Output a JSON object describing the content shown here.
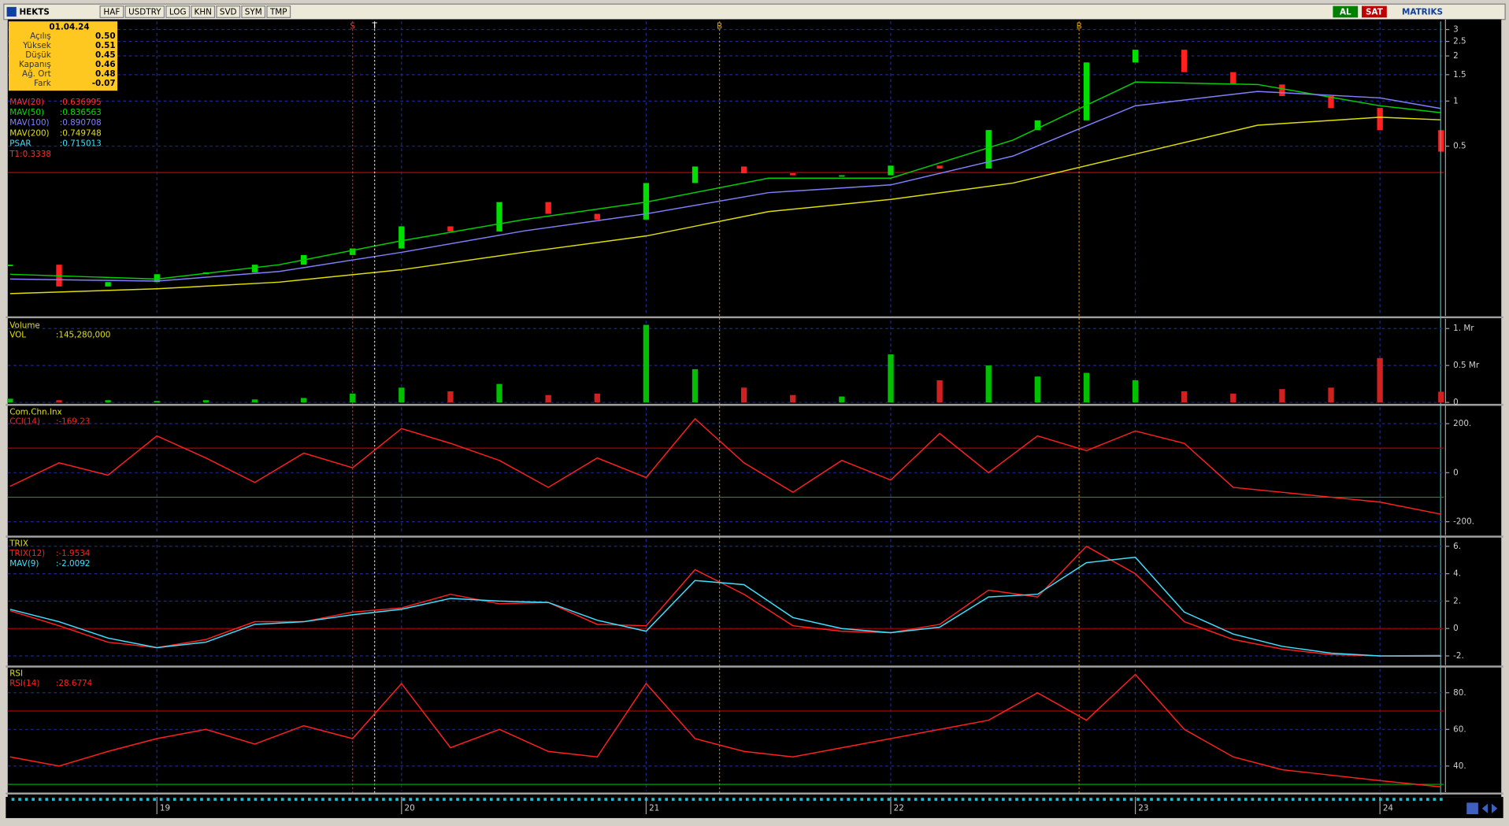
{
  "window": {
    "symbol": "HEKTS",
    "buttons": [
      "HAF",
      "USDTRY",
      "LOG",
      "KHN",
      "SVD",
      "SYM",
      "TMP"
    ],
    "right_buttons": [
      "AL",
      "SAT"
    ],
    "brand": "MATRIKS"
  },
  "info_box": {
    "date": "01.04.24",
    "rows": [
      {
        "label": "Açılış",
        "value": "0.50"
      },
      {
        "label": "Yüksek",
        "value": "0.51"
      },
      {
        "label": "Düşük",
        "value": "0.45"
      },
      {
        "label": "Kapanış",
        "value": "0.46"
      },
      {
        "label": "Ağ. Ort",
        "value": "0.48"
      },
      {
        "label": "Fark",
        "value": "-0.07"
      }
    ]
  },
  "chart_data": [
    {
      "type": "candlestick",
      "log_scale": true,
      "grid": true,
      "x": [
        2018.4,
        2018.6,
        2018.8,
        2019,
        2019.2,
        2019.4,
        2019.6,
        2019.8,
        2020,
        2020.2,
        2020.4,
        2020.6,
        2020.8,
        2021,
        2021.2,
        2021.4,
        2021.6,
        2021.8,
        2022,
        2022.2,
        2022.4,
        2022.6,
        2022.8,
        2023,
        2023.2,
        2023.4,
        2023.6,
        2023.8,
        2024,
        2024.25
      ],
      "xlim": [
        2018.39,
        2024.26
      ],
      "xticks": [
        {
          "value": 2019,
          "label": "19"
        },
        {
          "value": 2020,
          "label": "20"
        },
        {
          "value": 2021,
          "label": "21"
        },
        {
          "value": 2022,
          "label": "22"
        },
        {
          "value": 2023,
          "label": "23"
        },
        {
          "value": 2024,
          "label": "24"
        }
      ],
      "ylim": [
        0.0375,
        3.4
      ],
      "yticks": [
        3,
        2.5,
        2,
        1.5,
        1,
        0.5
      ],
      "up_color": "#00e000",
      "down_color": "#ff2020",
      "series": [
        {
          "name": "HEKTS",
          "values": [
            0.081,
            0.058,
            0.062,
            0.07,
            0.072,
            0.081,
            0.094,
            0.104,
            0.146,
            0.135,
            0.212,
            0.177,
            0.162,
            0.284,
            0.366,
            0.33,
            0.32,
            0.32,
            0.371,
            0.355,
            0.641,
            0.744,
            1.81,
            2.2,
            1.56,
            1.29,
            1.08,
            0.9,
            0.64,
            0.46
          ]
        },
        {
          "name": "MAV(50)",
          "color": "#00d000",
          "x": [
            2018.4,
            2019,
            2019.5,
            2020,
            2020.5,
            2021,
            2021.5,
            2022,
            2022.5,
            2023,
            2023.5,
            2024,
            2024.25
          ],
          "values": [
            0.07,
            0.065,
            0.081,
            0.117,
            0.162,
            0.212,
            0.306,
            0.306,
            0.55,
            1.34,
            1.29,
            0.93,
            0.836563
          ]
        },
        {
          "name": "MAV(100)",
          "color": "#8080ff",
          "x": [
            2018.4,
            2019,
            2019.5,
            2020,
            2020.5,
            2021,
            2021.5,
            2022,
            2022.5,
            2023,
            2023.5,
            2024,
            2024.25
          ],
          "values": [
            0.065,
            0.063,
            0.073,
            0.098,
            0.136,
            0.177,
            0.245,
            0.276,
            0.43,
            0.93,
            1.16,
            1.05,
            0.890708
          ]
        },
        {
          "name": "MAV(200)",
          "color": "#e0e000",
          "x": [
            2018.4,
            2019,
            2019.5,
            2020,
            2020.5,
            2021,
            2021.5,
            2022,
            2022.5,
            2023,
            2023.5,
            2024,
            2024.25
          ],
          "values": [
            0.052,
            0.056,
            0.062,
            0.075,
            0.098,
            0.126,
            0.183,
            0.221,
            0.284,
            0.443,
            0.69,
            0.78,
            0.749748
          ]
        }
      ],
      "legend": [
        {
          "name": "MAV(20)",
          "label": ":0.636995",
          "color": "#ff3030"
        },
        {
          "name": "MAV(50)",
          "label": ":0.836563",
          "color": "#00e000"
        },
        {
          "name": "MAV(100)",
          "label": ":0.890708",
          "color": "#8080ff"
        },
        {
          "name": "MAV(200)",
          "label": ":0.749748",
          "color": "#e0e000"
        },
        {
          "name": "PSAR",
          "label": ":0.715013",
          "color": "#40e0ff"
        },
        {
          "name": "T1:0.3338",
          "color": "#ff3030"
        }
      ],
      "hlines": [
        {
          "value": 0.3338,
          "color": "#c00000"
        }
      ],
      "signals": [
        {
          "x": 2019.8,
          "label": "S",
          "color": "#ff3030"
        },
        {
          "x": 2019.89,
          "label": "T",
          "color": "#ffffff"
        },
        {
          "x": 2021.3,
          "label": "B",
          "color": "#e0a000"
        },
        {
          "x": 2022.77,
          "label": "B",
          "color": "#e0a000"
        }
      ]
    },
    {
      "type": "bar",
      "title": "Volume",
      "grid": true,
      "x": [
        2018.4,
        2018.6,
        2018.8,
        2019,
        2019.2,
        2019.4,
        2019.6,
        2019.8,
        2020,
        2020.2,
        2020.4,
        2020.6,
        2020.8,
        2021,
        2021.2,
        2021.4,
        2021.6,
        2021.8,
        2022,
        2022.2,
        2022.4,
        2022.6,
        2022.8,
        2023,
        2023.2,
        2023.4,
        2023.6,
        2023.8,
        2024,
        2024.25
      ],
      "xlim": [
        2018.39,
        2024.26
      ],
      "ylim": [
        0,
        1107000000
      ],
      "yticks": [
        {
          "value": 1000000000,
          "label": "1. Mr"
        },
        {
          "value": 500000000,
          "label": "0.5 Mr"
        },
        0
      ],
      "series": [
        {
          "name": "VOL",
          "label": ":145,280,000",
          "color": "#e0e000",
          "values": [
            50000000,
            30000000,
            30000000,
            20000000,
            30000000,
            40000000,
            60000000,
            120000000,
            200000000,
            150000000,
            250000000,
            100000000,
            120000000,
            1050000000,
            450000000,
            200000000,
            100000000,
            80000000,
            650000000,
            300000000,
            500000000,
            350000000,
            400000000,
            300000000,
            150000000,
            120000000,
            180000000,
            200000000,
            600000000,
            145280000
          ]
        }
      ]
    },
    {
      "type": "line",
      "title": "Com.Chn.Inx",
      "grid": true,
      "x": [
        2018.4,
        2018.6,
        2018.8,
        2019,
        2019.2,
        2019.4,
        2019.6,
        2019.8,
        2020,
        2020.2,
        2020.4,
        2020.6,
        2020.8,
        2021,
        2021.2,
        2021.4,
        2021.6,
        2021.8,
        2022,
        2022.2,
        2022.4,
        2022.6,
        2022.8,
        2023,
        2023.2,
        2023.4,
        2023.6,
        2023.8,
        2024,
        2024.25
      ],
      "xlim": [
        2018.39,
        2024.26
      ],
      "ylim": [
        -251,
        267
      ],
      "yticks": [
        {
          "value": 200,
          "label": "200."
        },
        0,
        {
          "value": -200,
          "label": "-200."
        }
      ],
      "hlines": [
        {
          "value": 100,
          "color": "#b00000"
        },
        {
          "value": -100,
          "color": "#00a000"
        }
      ],
      "series": [
        {
          "name": "CCI(14)",
          "label": ":-169.23",
          "color": "#ff2020",
          "values": [
            -55,
            40,
            -10,
            150,
            60,
            -40,
            80,
            20,
            180,
            120,
            50,
            -60,
            60,
            -20,
            220,
            40,
            -80,
            50,
            -30,
            160,
            0,
            150,
            90,
            170,
            120,
            -60,
            -80,
            -100,
            -120,
            -169.23
          ]
        }
      ]
    },
    {
      "type": "line",
      "title": "TRIX",
      "grid": true,
      "x": [
        2018.4,
        2018.6,
        2018.8,
        2019,
        2019.2,
        2019.4,
        2019.6,
        2019.8,
        2020,
        2020.2,
        2020.4,
        2020.6,
        2020.8,
        2021,
        2021.2,
        2021.4,
        2021.6,
        2021.8,
        2022,
        2022.2,
        2022.4,
        2022.6,
        2022.8,
        2023,
        2023.2,
        2023.4,
        2023.6,
        2023.8,
        2024,
        2024.25
      ],
      "xlim": [
        2018.39,
        2024.26
      ],
      "ylim": [
        -2.6,
        6.53
      ],
      "yticks": [
        {
          "value": 6,
          "label": "6."
        },
        {
          "value": 4,
          "label": "4."
        },
        {
          "value": 2,
          "label": "2."
        },
        0,
        {
          "value": -2,
          "label": "-2."
        }
      ],
      "hlines": [
        {
          "value": 0,
          "color": "#b00000"
        }
      ],
      "series": [
        {
          "name": "TRIX(12)",
          "label": ":-1.9534",
          "color": "#ff2020",
          "values": [
            1.3,
            0.2,
            -1.0,
            -1.4,
            -0.8,
            0.5,
            0.5,
            1.2,
            1.5,
            2.5,
            1.8,
            1.9,
            0.3,
            0.2,
            4.3,
            2.5,
            0.2,
            -0.2,
            -0.3,
            0.3,
            2.8,
            2.3,
            6.0,
            4.0,
            0.5,
            -0.8,
            -1.5,
            -1.9,
            -2.0,
            -1.9534
          ]
        },
        {
          "name": "MAV(9)",
          "label": ":-2.0092",
          "color": "#40e0ff",
          "values": [
            1.4,
            0.5,
            -0.7,
            -1.4,
            -1.0,
            0.3,
            0.5,
            1.0,
            1.4,
            2.2,
            2.0,
            1.9,
            0.6,
            -0.2,
            3.5,
            3.2,
            0.8,
            0,
            -0.3,
            0.1,
            2.3,
            2.5,
            4.8,
            5.2,
            1.2,
            -0.4,
            -1.3,
            -1.8,
            -2.0,
            -2.0092
          ]
        }
      ]
    },
    {
      "type": "line",
      "title": "RSI",
      "grid": true,
      "x": [
        2018.4,
        2018.6,
        2018.8,
        2019,
        2019.2,
        2019.4,
        2019.6,
        2019.8,
        2020,
        2020.2,
        2020.4,
        2020.6,
        2020.8,
        2021,
        2021.2,
        2021.4,
        2021.6,
        2021.8,
        2022,
        2022.2,
        2022.4,
        2022.6,
        2022.8,
        2023,
        2023.2,
        2023.4,
        2023.6,
        2023.8,
        2024,
        2024.25
      ],
      "xlim": [
        2018.39,
        2024.26
      ],
      "ylim": [
        26.3,
        93
      ],
      "yticks": [
        {
          "value": 80,
          "label": "80."
        },
        {
          "value": 60,
          "label": "60."
        },
        {
          "value": 40,
          "label": "40."
        }
      ],
      "hlines": [
        {
          "value": 70,
          "color": "#b00000"
        },
        {
          "value": 30,
          "color": "#00a000"
        }
      ],
      "series": [
        {
          "name": "RSI(14)",
          "label": ":28.6774",
          "color": "#ff2020",
          "values": [
            45,
            40,
            48,
            55,
            60,
            52,
            62,
            55,
            85,
            50,
            60,
            48,
            45,
            85,
            55,
            48,
            45,
            50,
            55,
            60,
            65,
            80,
            65,
            90,
            60,
            45,
            38,
            35,
            32,
            28.6774
          ]
        }
      ]
    }
  ]
}
